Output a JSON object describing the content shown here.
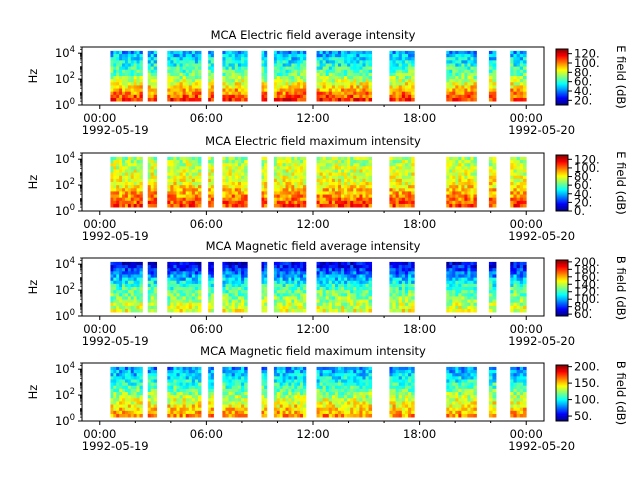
{
  "figure": {
    "date_start": "1992-05-19",
    "date_end": "1992-05-20"
  },
  "chart_data": [
    {
      "type": "heatmap",
      "title": "MCA  Electric field average intensity",
      "ylabel": "Hz",
      "xlabel": "",
      "x_ticks": [
        "00:00",
        "06:00",
        "12:00",
        "18:00",
        "00:00"
      ],
      "x_tick_hours": [
        0,
        6,
        12,
        18,
        24
      ],
      "x_date_labels": [
        "1992-05-19",
        "1992-05-20"
      ],
      "xlim_hours": [
        -1.0,
        25.0
      ],
      "y_scale": "log",
      "y_ticks": [
        "10^0",
        "10^2",
        "10^4"
      ],
      "ylim": [
        1,
        30000
      ],
      "colorbar_label": "E field (dB)",
      "colorbar_ticks": [
        "20.",
        "40.",
        "60.",
        "80.",
        "100.",
        "120."
      ],
      "colorbar_range": [
        10,
        130
      ],
      "data_intervals_hours": [
        [
          0.6,
          2.4
        ],
        [
          2.7,
          3.2
        ],
        [
          3.8,
          5.7
        ],
        [
          6.1,
          6.4
        ],
        [
          6.9,
          8.3
        ],
        [
          9.1,
          9.4
        ],
        [
          9.8,
          11.6
        ],
        [
          12.2,
          15.3
        ],
        [
          16.3,
          17.7
        ],
        [
          19.5,
          21.2
        ],
        [
          21.9,
          22.3
        ],
        [
          23.1,
          24.0
        ]
      ],
      "color_scheme": "rainbow",
      "typical_values": {
        "low_freq": 110,
        "mid_freq": 70,
        "high_freq": 45
      }
    },
    {
      "type": "heatmap",
      "title": "MCA  Electric field maximum intensity",
      "ylabel": "Hz",
      "xlabel": "",
      "x_ticks": [
        "00:00",
        "06:00",
        "12:00",
        "18:00",
        "00:00"
      ],
      "x_tick_hours": [
        0,
        6,
        12,
        18,
        24
      ],
      "x_date_labels": [
        "1992-05-19",
        "1992-05-20"
      ],
      "xlim_hours": [
        -1.0,
        25.0
      ],
      "y_scale": "log",
      "y_ticks": [
        "10^0",
        "10^2",
        "10^4"
      ],
      "ylim": [
        1,
        30000
      ],
      "colorbar_label": "E field (dB)",
      "colorbar_ticks": [
        "0.",
        "20.",
        "40.",
        "60.",
        "80.",
        "100.",
        "120."
      ],
      "colorbar_range": [
        0,
        130
      ],
      "data_intervals_hours": [
        [
          0.6,
          2.4
        ],
        [
          2.7,
          3.2
        ],
        [
          3.8,
          5.7
        ],
        [
          6.1,
          6.4
        ],
        [
          6.9,
          8.3
        ],
        [
          9.1,
          9.4
        ],
        [
          9.8,
          11.6
        ],
        [
          12.2,
          15.3
        ],
        [
          16.3,
          17.7
        ],
        [
          19.5,
          21.2
        ],
        [
          21.9,
          22.3
        ],
        [
          23.1,
          24.0
        ]
      ],
      "color_scheme": "rainbow",
      "typical_values": {
        "low_freq": 105,
        "mid_freq": 80,
        "high_freq": 70
      }
    },
    {
      "type": "heatmap",
      "title": "MCA  Magnetic field average intensity",
      "ylabel": "Hz",
      "xlabel": "",
      "x_ticks": [
        "00:00",
        "06:00",
        "12:00",
        "18:00",
        "00:00"
      ],
      "x_tick_hours": [
        0,
        6,
        12,
        18,
        24
      ],
      "x_date_labels": [
        "1992-05-19",
        "1992-05-20"
      ],
      "xlim_hours": [
        -1.0,
        25.0
      ],
      "y_scale": "log",
      "y_ticks": [
        "10^0",
        "10^2",
        "10^4"
      ],
      "ylim": [
        1,
        30000
      ],
      "colorbar_label": "B field (dB)",
      "colorbar_ticks": [
        "60.",
        "80.",
        "100.",
        "120.",
        "140.",
        "160.",
        "180.",
        "200."
      ],
      "colorbar_range": [
        55,
        205
      ],
      "data_intervals_hours": [
        [
          0.6,
          2.4
        ],
        [
          2.7,
          3.2
        ],
        [
          3.8,
          5.7
        ],
        [
          6.1,
          6.4
        ],
        [
          6.9,
          8.3
        ],
        [
          9.1,
          9.4
        ],
        [
          9.8,
          11.6
        ],
        [
          12.2,
          15.3
        ],
        [
          16.3,
          17.7
        ],
        [
          19.5,
          21.2
        ],
        [
          21.9,
          22.3
        ],
        [
          23.1,
          24.0
        ]
      ],
      "color_scheme": "rainbow",
      "typical_values": {
        "low_freq": 145,
        "mid_freq": 120,
        "high_freq": 70
      }
    },
    {
      "type": "heatmap",
      "title": "MCA  Magnetic field maximum intensity",
      "ylabel": "Hz",
      "xlabel": "",
      "x_ticks": [
        "00:00",
        "06:00",
        "12:00",
        "18:00",
        "00:00"
      ],
      "x_tick_hours": [
        0,
        6,
        12,
        18,
        24
      ],
      "x_date_labels": [
        "1992-05-19",
        "1992-05-20"
      ],
      "xlim_hours": [
        -1.0,
        25.0
      ],
      "y_scale": "log",
      "y_ticks": [
        "10^0",
        "10^2",
        "10^4"
      ],
      "ylim": [
        1,
        30000
      ],
      "colorbar_label": "B field (dB)",
      "colorbar_ticks": [
        "50.",
        "100.",
        "150.",
        "200."
      ],
      "colorbar_range": [
        35,
        205
      ],
      "data_intervals_hours": [
        [
          0.6,
          2.4
        ],
        [
          2.7,
          3.2
        ],
        [
          3.8,
          5.7
        ],
        [
          6.1,
          6.4
        ],
        [
          6.9,
          8.3
        ],
        [
          9.1,
          9.4
        ],
        [
          9.8,
          11.6
        ],
        [
          12.2,
          15.3
        ],
        [
          16.3,
          17.7
        ],
        [
          19.5,
          21.2
        ],
        [
          21.9,
          22.3
        ],
        [
          23.1,
          24.0
        ]
      ],
      "color_scheme": "rainbow",
      "typical_values": {
        "low_freq": 160,
        "mid_freq": 120,
        "high_freq": 80
      }
    }
  ]
}
